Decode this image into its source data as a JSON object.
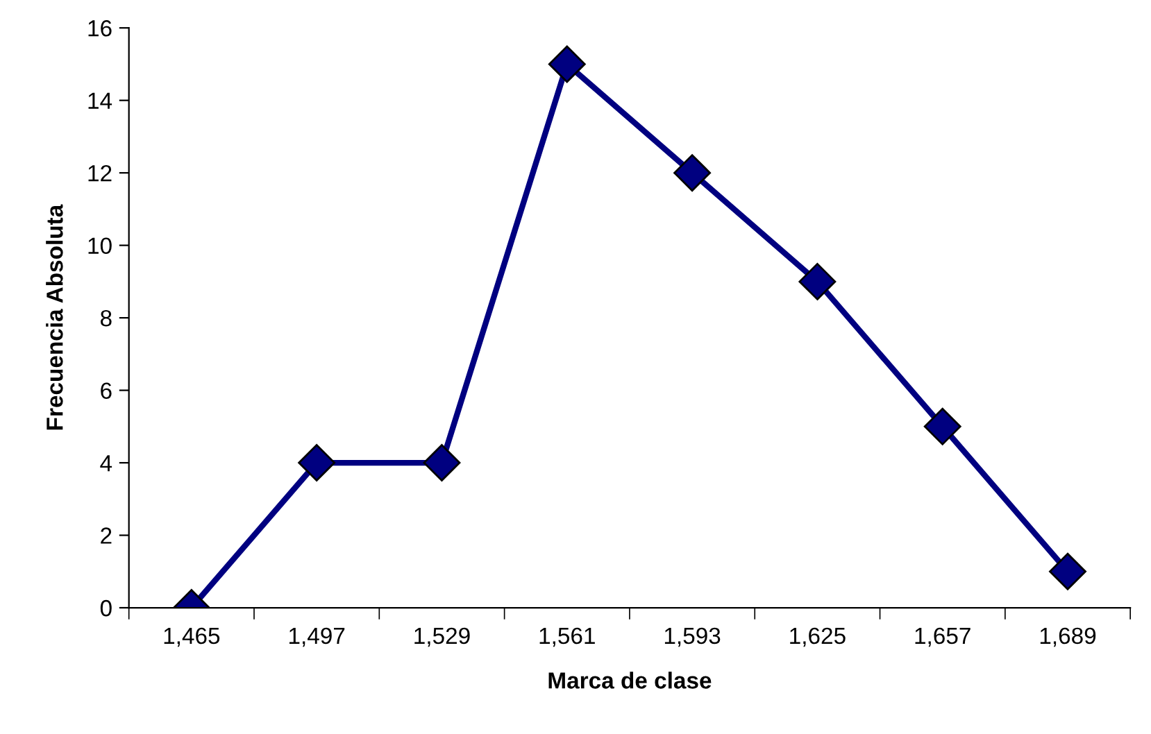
{
  "chart_data": {
    "type": "line",
    "xlabel": "Marca de clase",
    "ylabel": "Frecuencia Absoluta",
    "categories": [
      "1,465",
      "1,497",
      "1,529",
      "1,561",
      "1,593",
      "1,625",
      "1,657",
      "1,689"
    ],
    "series": [
      {
        "color": "#000080",
        "values": [
          0,
          4,
          4,
          15,
          12,
          9,
          5,
          1
        ]
      }
    ],
    "ylim": [
      0,
      16
    ],
    "yticks": [
      0,
      2,
      4,
      6,
      8,
      10,
      12,
      14,
      16
    ],
    "marker": "diamond",
    "line_style": "solid",
    "grid": false
  }
}
